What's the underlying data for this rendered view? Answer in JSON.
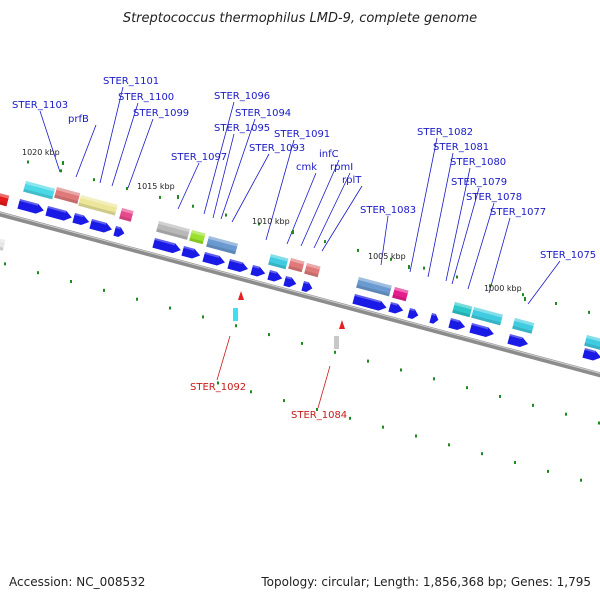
{
  "title": "Streptococcus thermophilus LMD-9, complete genome",
  "footer": {
    "accession": "Accession: NC_008532",
    "topology": "Topology: circular; Length: 1,856,368 bp; Genes: 1,795"
  },
  "colors": {
    "backbone": "#8c8c8c",
    "cds": "#1a1ae6",
    "tick": "#1f8a1f",
    "fwd_label": "#1a1ac8",
    "rev_label": "#c81a1a",
    "rev_marker": "#e62020"
  },
  "ticks": [
    {
      "label": "1020 kbp"
    },
    {
      "label": "1015 kbp"
    },
    {
      "label": "1010 kbp"
    },
    {
      "label": "1005 kbp"
    },
    {
      "label": "1000 kbp"
    }
  ],
  "feature_labels": [
    {
      "name": "STER_1103"
    },
    {
      "name": "prfB"
    },
    {
      "name": "STER_1101"
    },
    {
      "name": "STER_1100"
    },
    {
      "name": "STER_1099"
    },
    {
      "name": "STER_1097"
    },
    {
      "name": "STER_1096"
    },
    {
      "name": "STER_1095"
    },
    {
      "name": "STER_1094"
    },
    {
      "name": "STER_1093"
    },
    {
      "name": "STER_1091"
    },
    {
      "name": "cmk"
    },
    {
      "name": "infC"
    },
    {
      "name": "rpmI"
    },
    {
      "name": "rplT"
    },
    {
      "name": "STER_1083"
    },
    {
      "name": "STER_1082"
    },
    {
      "name": "STER_1081"
    },
    {
      "name": "STER_1080"
    },
    {
      "name": "STER_1079"
    },
    {
      "name": "STER_1078"
    },
    {
      "name": "STER_1077"
    },
    {
      "name": "STER_1075"
    }
  ],
  "reverse_labels": [
    {
      "name": "STER_1092"
    },
    {
      "name": "STER_1084"
    }
  ],
  "cog_blocks": [
    {
      "color": "#e21c1c"
    },
    {
      "color": "#e6e6e6"
    },
    {
      "color": "#4ad9e6"
    },
    {
      "color": "#e07a7a"
    },
    {
      "color": "#ece69a"
    },
    {
      "color": "#e64a8c"
    },
    {
      "color": "#b8b8b8"
    },
    {
      "color": "#9ae02c"
    },
    {
      "color": "#6a9ad0"
    },
    {
      "color": "#40cce0"
    },
    {
      "color": "#e07a7a"
    },
    {
      "color": "#e07a7a"
    },
    {
      "color": "#6a9ad0"
    },
    {
      "color": "#e61c8c"
    },
    {
      "color": "#2cc8c8"
    },
    {
      "color": "#40cce0"
    },
    {
      "color": "#40cce0"
    },
    {
      "color": "#40cce0"
    }
  ],
  "reverse_blocks": [
    {
      "color": "#40e0f0"
    },
    {
      "color": "#c8c8c8"
    }
  ]
}
